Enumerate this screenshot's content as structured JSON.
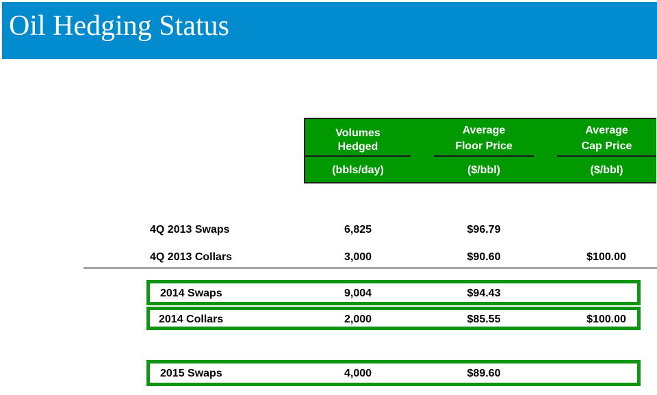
{
  "title": "Oil Hedging Status",
  "colors": {
    "title_bar": "#008bcf",
    "header_fill": "#009900",
    "highlight_border": "#0f9414",
    "divider": "#a6a6a6"
  },
  "table": {
    "columns": [
      {
        "line1": "Volumes",
        "line2": "Hedged",
        "unit": "(bbls/day)"
      },
      {
        "line1": "Average",
        "line2": "Floor Price",
        "unit": "($/bbl)"
      },
      {
        "line1": "Average",
        "line2": "Cap Price",
        "unit": "($/bbl)"
      }
    ],
    "rows": [
      {
        "label": "4Q 2013 Swaps",
        "volume": "6,825",
        "floor": "$96.79",
        "cap": ""
      },
      {
        "label": "4Q 2013 Collars",
        "volume": "3,000",
        "floor": "$90.60",
        "cap": "$100.00"
      },
      {
        "label": "2014 Swaps",
        "volume": "9,004",
        "floor": "$94.43",
        "cap": ""
      },
      {
        "label": "2014 Collars",
        "volume": "2,000",
        "floor": "$85.55",
        "cap": "$100.00"
      },
      {
        "label": "2015 Swaps",
        "volume": "4,000",
        "floor": "$89.60",
        "cap": ""
      }
    ]
  }
}
